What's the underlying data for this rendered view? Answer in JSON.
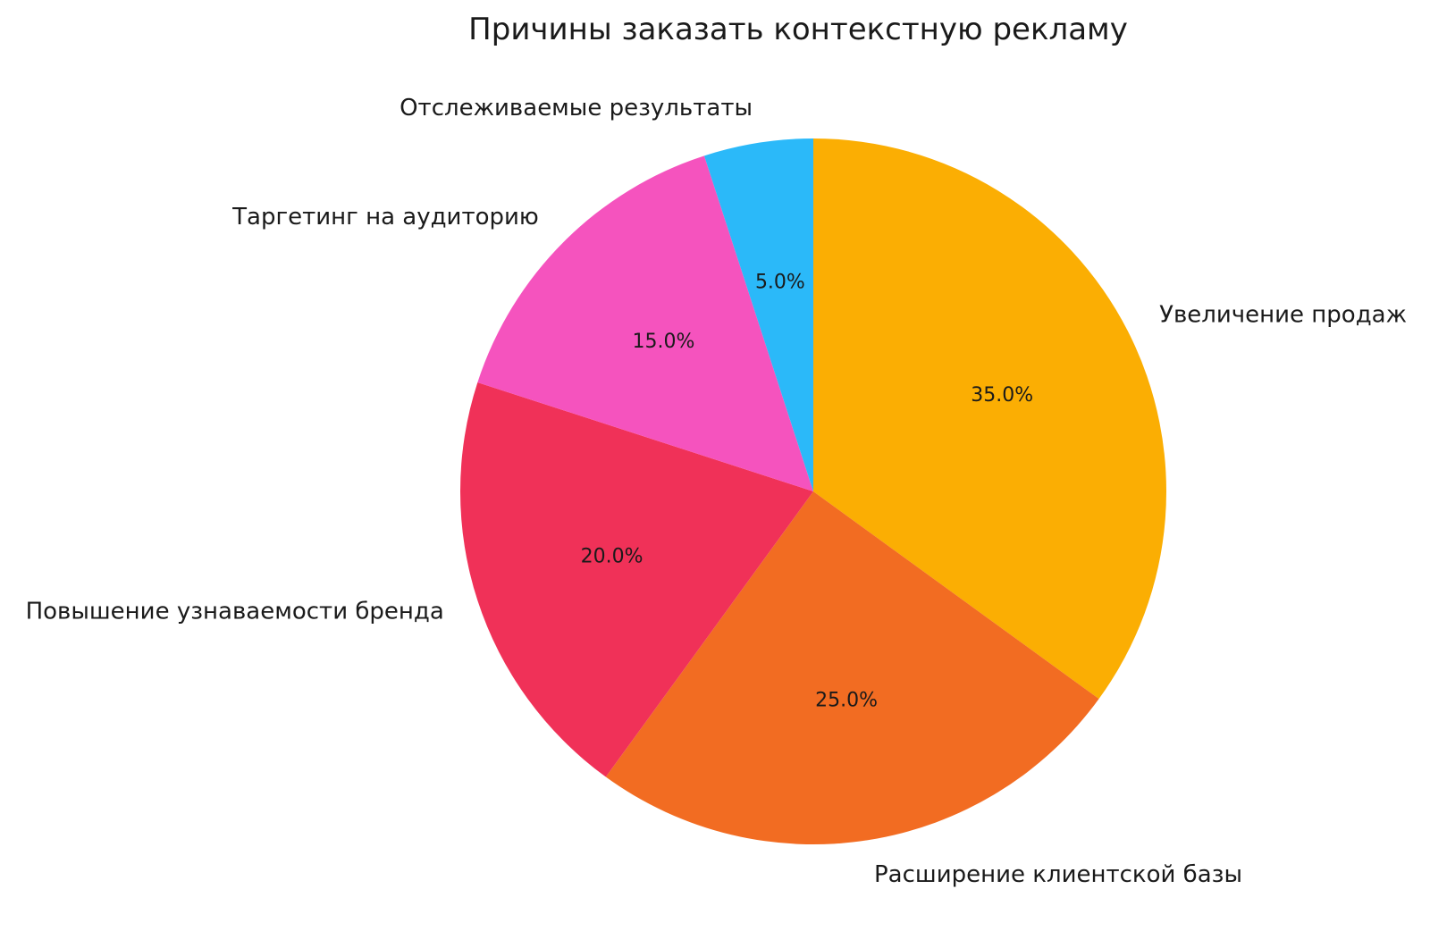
{
  "chart_data": {
    "type": "pie",
    "title": "Причины заказать контекстную рекламу",
    "categories": [
      "Увеличение продаж",
      "Расширение клиентской базы",
      "Повышение узнаваемости бренда",
      "Таргетинг на аудиторию",
      "Отслеживаемые результаты"
    ],
    "values": [
      35.0,
      25.0,
      20.0,
      15.0,
      5.0
    ],
    "percent_labels": [
      "35.0%",
      "25.0%",
      "20.0%",
      "15.0%",
      "5.0%"
    ],
    "colors": [
      "#FBAE03",
      "#F26C22",
      "#F03158",
      "#F553BE",
      "#2BB9F9"
    ],
    "start_angle_deg": 90,
    "direction": "clockwise",
    "legend_position": "none",
    "text_color": "#1a1a1a",
    "background_color": "#ffffff"
  }
}
